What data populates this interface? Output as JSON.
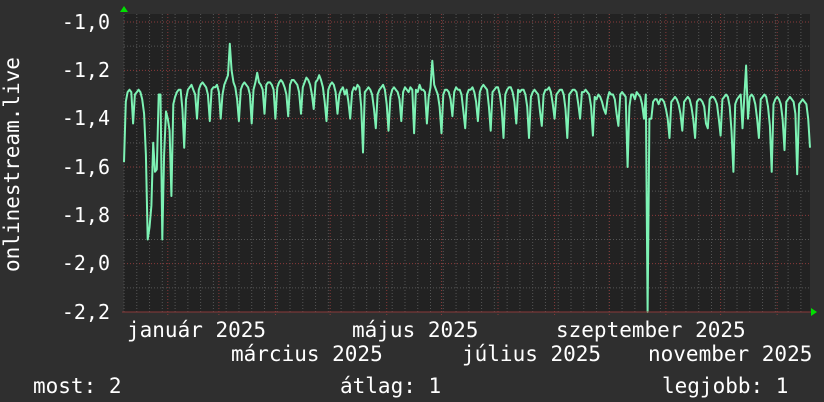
{
  "chart_data": {
    "type": "line",
    "ylabel": "onlinestream.live",
    "xlabel": "",
    "ylim": [
      -2.2,
      -1.0
    ],
    "xlim": [
      "2025-01-08",
      "2026-01-19"
    ],
    "grid": true,
    "yticks": [
      "-1,0",
      "-1,2",
      "-1,4",
      "-1,6",
      "-1,8",
      "-2,0",
      "-2,2"
    ],
    "ytick_values": [
      -1.0,
      -1.2,
      -1.4,
      -1.6,
      -1.8,
      -2.0,
      -2.2
    ],
    "xticks": [
      "január 2025",
      "március 2025",
      "május 2025",
      "július 2025",
      "szeptember 2025",
      "november 2025"
    ],
    "colors": {
      "line": "#7df2b4",
      "background": "#2f2f2f",
      "plot": "#222222",
      "grid_minor": "#555555",
      "grid_major": "#8a3a3a",
      "arrow": "#00e000"
    },
    "series": [
      {
        "daily_by_week": [
          {
            "week": "2025-01-08",
            "values": [
              -1.58,
              -1.33,
              -1.29,
              -1.28,
              -1.29,
              -1.42,
              -1.3
            ]
          },
          {
            "week": "2025-01-15",
            "values": [
              -1.29,
              -1.28,
              -1.29,
              -1.32,
              -1.38,
              -1.55,
              -1.9
            ]
          },
          {
            "week": "2025-01-22",
            "values": [
              -1.85,
              -1.76,
              -1.5,
              -1.62,
              -1.61,
              -1.3,
              -1.3
            ]
          },
          {
            "week": "2025-01-29",
            "values": [
              -1.9,
              -1.55,
              -1.37,
              -1.4,
              -1.45,
              -1.72,
              -1.34
            ]
          },
          {
            "week": "2025-02-05",
            "values": [
              -1.31,
              -1.29,
              -1.28,
              -1.28,
              -1.36,
              -1.52,
              -1.32
            ]
          },
          {
            "week": "2025-02-12",
            "values": [
              -1.28,
              -1.27,
              -1.26,
              -1.28,
              -1.3,
              -1.4,
              -1.28
            ]
          },
          {
            "week": "2025-02-19",
            "values": [
              -1.26,
              -1.25,
              -1.26,
              -1.27,
              -1.3,
              -1.41,
              -1.28
            ]
          },
          {
            "week": "2025-02-26",
            "values": [
              -1.27,
              -1.27,
              -1.26,
              -1.29,
              -1.4,
              -1.3,
              -1.26
            ]
          },
          {
            "week": "2025-03-05",
            "values": [
              -1.24,
              -1.22,
              -1.09,
              -1.2,
              -1.25,
              -1.27,
              -1.32
            ]
          },
          {
            "week": "2025-03-12",
            "values": [
              -1.41,
              -1.28,
              -1.26,
              -1.25,
              -1.26,
              -1.27,
              -1.3
            ]
          },
          {
            "week": "2025-03-19",
            "values": [
              -1.42,
              -1.28,
              -1.25,
              -1.21,
              -1.25,
              -1.26,
              -1.28
            ]
          },
          {
            "week": "2025-03-26",
            "values": [
              -1.38,
              -1.26,
              -1.25,
              -1.25,
              -1.26,
              -1.28,
              -1.4
            ]
          },
          {
            "week": "2025-04-02",
            "values": [
              -1.27,
              -1.25,
              -1.24,
              -1.25,
              -1.27,
              -1.3,
              -1.39
            ]
          },
          {
            "week": "2025-04-09",
            "values": [
              -1.26,
              -1.24,
              -1.24,
              -1.25,
              -1.26,
              -1.29,
              -1.38
            ]
          },
          {
            "week": "2025-04-16",
            "values": [
              -1.27,
              -1.25,
              -1.23,
              -1.24,
              -1.26,
              -1.3,
              -1.36
            ]
          },
          {
            "week": "2025-04-23",
            "values": [
              -1.25,
              -1.24,
              -1.22,
              -1.24,
              -1.27,
              -1.33,
              -1.41
            ]
          },
          {
            "week": "2025-04-30",
            "values": [
              -1.28,
              -1.26,
              -1.25,
              -1.26,
              -1.29,
              -1.38,
              -1.3
            ]
          },
          {
            "week": "2025-05-07",
            "values": [
              -1.28,
              -1.27,
              -1.3,
              -1.28,
              -1.33,
              -1.4,
              -1.29
            ]
          },
          {
            "week": "2025-05-14",
            "values": [
              -1.27,
              -1.28,
              -1.26,
              -1.27,
              -1.35,
              -1.54,
              -1.29
            ]
          },
          {
            "week": "2025-05-21",
            "values": [
              -1.28,
              -1.27,
              -1.28,
              -1.3,
              -1.36,
              -1.44,
              -1.3
            ]
          },
          {
            "week": "2025-05-28",
            "values": [
              -1.28,
              -1.27,
              -1.26,
              -1.28,
              -1.34,
              -1.45,
              -1.31
            ]
          },
          {
            "week": "2025-06-04",
            "values": [
              -1.28,
              -1.27,
              -1.28,
              -1.29,
              -1.32,
              -1.41,
              -1.29
            ]
          },
          {
            "week": "2025-06-11",
            "values": [
              -1.27,
              -1.28,
              -1.29,
              -1.27,
              -1.28,
              -1.46,
              -1.28
            ]
          },
          {
            "week": "2025-06-18",
            "values": [
              -1.29,
              -1.26,
              -1.28,
              -1.28,
              -1.29,
              -1.42,
              -1.31
            ]
          },
          {
            "week": "2025-06-25",
            "values": [
              -1.27,
              -1.16,
              -1.26,
              -1.28,
              -1.3,
              -1.35,
              -1.46
            ]
          },
          {
            "week": "2025-07-02",
            "values": [
              -1.3,
              -1.28,
              -1.28,
              -1.29,
              -1.32,
              -1.39,
              -1.29
            ]
          },
          {
            "week": "2025-07-09",
            "values": [
              -1.27,
              -1.28,
              -1.28,
              -1.3,
              -1.37,
              -1.44,
              -1.3
            ]
          },
          {
            "week": "2025-07-16",
            "values": [
              -1.28,
              -1.28,
              -1.27,
              -1.29,
              -1.33,
              -1.41,
              -1.29
            ]
          },
          {
            "week": "2025-07-23",
            "values": [
              -1.27,
              -1.26,
              -1.27,
              -1.28,
              -1.35,
              -1.45,
              -1.29
            ]
          },
          {
            "week": "2025-07-30",
            "values": [
              -1.28,
              -1.27,
              -1.27,
              -1.3,
              -1.36,
              -1.48,
              -1.3
            ]
          },
          {
            "week": "2025-08-06",
            "values": [
              -1.28,
              -1.27,
              -1.27,
              -1.29,
              -1.33,
              -1.42,
              -1.28
            ]
          },
          {
            "week": "2025-08-13",
            "values": [
              -1.29,
              -1.28,
              -1.28,
              -1.3,
              -1.35,
              -1.48,
              -1.31
            ]
          },
          {
            "week": "2025-08-20",
            "values": [
              -1.29,
              -1.28,
              -1.29,
              -1.3,
              -1.37,
              -1.43,
              -1.3
            ]
          },
          {
            "week": "2025-08-27",
            "values": [
              -1.28,
              -1.28,
              -1.27,
              -1.29,
              -1.34,
              -1.4,
              -1.3
            ]
          },
          {
            "week": "2025-09-03",
            "values": [
              -1.29,
              -1.28,
              -1.28,
              -1.3,
              -1.36,
              -1.48,
              -1.3
            ]
          },
          {
            "week": "2025-09-10",
            "values": [
              -1.29,
              -1.28,
              -1.28,
              -1.29,
              -1.34,
              -1.4,
              -1.29
            ]
          },
          {
            "week": "2025-09-17",
            "values": [
              -1.29,
              -1.28,
              -1.29,
              -1.3,
              -1.35,
              -1.47,
              -1.31
            ]
          },
          {
            "week": "2025-09-24",
            "values": [
              -1.32,
              -1.3,
              -1.31,
              -1.33,
              -1.36,
              -1.38,
              -1.32
            ]
          },
          {
            "week": "2025-10-01",
            "values": [
              -1.29,
              -1.3,
              -1.3,
              -1.32,
              -1.38,
              -1.43,
              -1.3
            ]
          },
          {
            "week": "2025-10-08",
            "values": [
              -1.29,
              -1.3,
              -1.31,
              -1.6,
              -1.35,
              -1.3,
              -1.3
            ]
          },
          {
            "week": "2025-10-15",
            "values": [
              -1.32,
              -1.29,
              -1.3,
              -1.31,
              -1.34,
              -1.4,
              -1.3
            ]
          },
          {
            "week": "2025-10-22",
            "values": [
              -2.2,
              -1.4,
              -1.4,
              -1.33,
              -1.32,
              -1.32,
              -1.34
            ]
          },
          {
            "week": "2025-10-29",
            "values": [
              -1.32,
              -1.32,
              -1.33,
              -1.36,
              -1.4,
              -1.48,
              -1.33
            ]
          },
          {
            "week": "2025-11-05",
            "values": [
              -1.32,
              -1.31,
              -1.32,
              -1.34,
              -1.38,
              -1.45,
              -1.33
            ]
          },
          {
            "week": "2025-11-12",
            "values": [
              -1.32,
              -1.31,
              -1.32,
              -1.35,
              -1.4,
              -1.48,
              -1.33
            ]
          },
          {
            "week": "2025-11-19",
            "values": [
              -1.32,
              -1.32,
              -1.33,
              -1.35,
              -1.42,
              -1.44,
              -1.32
            ]
          },
          {
            "week": "2025-11-26",
            "values": [
              -1.31,
              -1.31,
              -1.32,
              -1.34,
              -1.4,
              -1.47,
              -1.32
            ]
          },
          {
            "week": "2025-12-03",
            "values": [
              -1.31,
              -1.3,
              -1.31,
              -1.35,
              -1.45,
              -1.62,
              -1.34
            ]
          },
          {
            "week": "2025-12-10",
            "values": [
              -1.32,
              -1.31,
              -1.3,
              -1.44,
              -1.31,
              -1.18,
              -1.4
            ]
          },
          {
            "week": "2025-12-17",
            "values": [
              -1.31,
              -1.3,
              -1.31,
              -1.34,
              -1.4,
              -1.48,
              -1.32
            ]
          },
          {
            "week": "2025-12-24",
            "values": [
              -1.31,
              -1.3,
              -1.31,
              -1.35,
              -1.43,
              -1.62,
              -1.34
            ]
          },
          {
            "week": "2025-12-31",
            "values": [
              -1.32,
              -1.31,
              -1.32,
              -1.34,
              -1.4,
              -1.53,
              -1.33
            ]
          },
          {
            "week": "2026-01-07",
            "values": [
              -1.32,
              -1.31,
              -1.32,
              -1.33,
              -1.38,
              -1.63,
              -1.34
            ]
          },
          {
            "week": "2026-01-14",
            "values": [
              -1.33,
              -1.32,
              -1.33,
              -1.34,
              -1.4,
              -1.52
            ]
          }
        ]
      }
    ]
  },
  "legend": {
    "current": "most: 2",
    "average": "átlag: 1",
    "best": "legjobb: 1"
  }
}
